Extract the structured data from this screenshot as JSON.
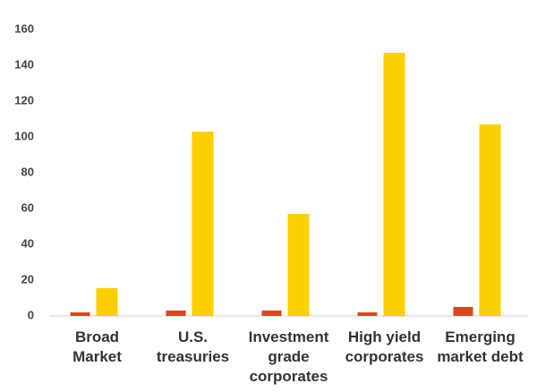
{
  "chart_data": {
    "type": "bar",
    "categories": [
      "Broad Market",
      "U.S. treasuries",
      "Investment grade corporates",
      "High yield corporates",
      "Emerging market debt"
    ],
    "series": [
      {
        "color": "#e8401c",
        "values": [
          2,
          3,
          3,
          2,
          5
        ]
      },
      {
        "color": "#fccf00",
        "values": [
          15.5,
          103,
          57,
          147,
          107
        ]
      }
    ],
    "ylim": [
      0,
      160
    ],
    "yticks": [
      0,
      20,
      40,
      60,
      80,
      100,
      120,
      140,
      160
    ],
    "grid": false
  }
}
